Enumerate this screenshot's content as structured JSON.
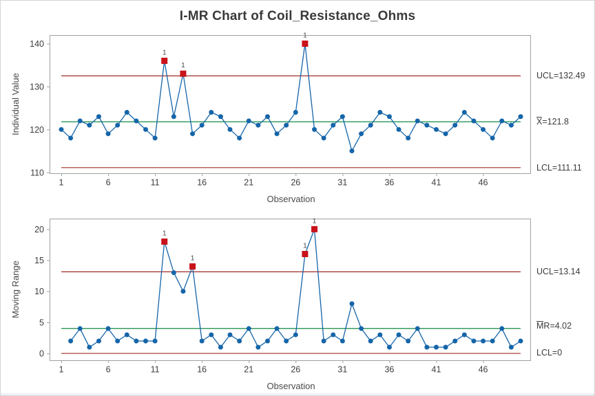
{
  "title": "I-MR Chart of Coil_Resistance_Ohms",
  "colors": {
    "series": "#1565a9",
    "center_line": "#0f8a43",
    "control_limit": "#9e2b25",
    "out_of_control": "#c9121a",
    "flag_text": "#4c4c4c",
    "title_text": "#3a3a3a",
    "tick_text": "#3d3d3d",
    "axis_title_text": "#4a4a4a",
    "label_text": "#3b3b3b",
    "frame": "#a0a0a0"
  },
  "chart_data": [
    {
      "type": "line",
      "name": "individuals-chart",
      "title": "",
      "xlabel": "Observation",
      "ylabel": "Individual Value",
      "x_scale": [
        1,
        50
      ],
      "xticks": [
        1,
        6,
        11,
        16,
        21,
        26,
        31,
        36,
        41,
        46
      ],
      "yticks": [
        110,
        120,
        130,
        140
      ],
      "ylim": [
        109.8,
        142.0
      ],
      "grid": false,
      "x": [
        1,
        2,
        3,
        4,
        5,
        6,
        7,
        8,
        9,
        10,
        11,
        12,
        13,
        14,
        15,
        16,
        17,
        18,
        19,
        20,
        21,
        22,
        23,
        24,
        25,
        26,
        27,
        28,
        29,
        30,
        31,
        32,
        33,
        34,
        35,
        36,
        37,
        38,
        39,
        40,
        41,
        42,
        43,
        44,
        45,
        46,
        47,
        48,
        49,
        50
      ],
      "values": [
        120,
        118,
        122,
        121,
        123,
        119,
        121,
        124,
        122,
        120,
        118,
        136,
        123,
        133,
        119,
        121,
        124,
        123,
        120,
        118,
        122,
        121,
        123,
        119,
        121,
        124,
        140,
        120,
        118,
        121,
        123,
        115,
        119,
        121,
        124,
        123,
        120,
        118,
        122,
        121,
        120,
        119,
        121,
        124,
        122,
        120,
        118,
        122,
        121,
        123
      ],
      "center_line": 121.8,
      "ucl": 132.49,
      "lcl": 111.11,
      "out_of_control_x": [
        12,
        14,
        27
      ],
      "flag_label": "1",
      "labels": {
        "ucl": "UCL=132.49",
        "center_bar": "X",
        "center_rest": "=121.8",
        "lcl": "LCL=111.11"
      }
    },
    {
      "type": "line",
      "name": "moving-range-chart",
      "title": "",
      "xlabel": "Observation",
      "ylabel": "Moving Range",
      "x_scale": [
        1,
        50
      ],
      "xticks": [
        1,
        6,
        11,
        16,
        21,
        26,
        31,
        36,
        41,
        46
      ],
      "yticks": [
        0,
        5,
        10,
        15,
        20
      ],
      "ylim": [
        -1.1,
        21.7
      ],
      "grid": false,
      "x": [
        2,
        3,
        4,
        5,
        6,
        7,
        8,
        9,
        10,
        11,
        12,
        13,
        14,
        15,
        16,
        17,
        18,
        19,
        20,
        21,
        22,
        23,
        24,
        25,
        26,
        27,
        28,
        29,
        30,
        31,
        32,
        33,
        34,
        35,
        36,
        37,
        38,
        39,
        40,
        41,
        42,
        43,
        44,
        45,
        46,
        47,
        48,
        49,
        50
      ],
      "values": [
        2,
        4,
        1,
        2,
        4,
        2,
        3,
        2,
        2,
        2,
        18,
        13,
        10,
        14,
        2,
        3,
        1,
        3,
        2,
        4,
        1,
        2,
        4,
        2,
        3,
        16,
        20,
        2,
        3,
        2,
        8,
        4,
        2,
        3,
        1,
        3,
        2,
        4,
        1,
        1,
        1,
        2,
        3,
        2,
        2,
        2,
        4,
        1,
        2
      ],
      "center_line": 4.02,
      "ucl": 13.14,
      "lcl": 0,
      "out_of_control_x": [
        12,
        15,
        27,
        28
      ],
      "flag_label": "1",
      "labels": {
        "ucl": "UCL=13.14",
        "center_bar": "M",
        "center_rest": "R=4.02",
        "lcl": "LCL=0"
      }
    }
  ]
}
